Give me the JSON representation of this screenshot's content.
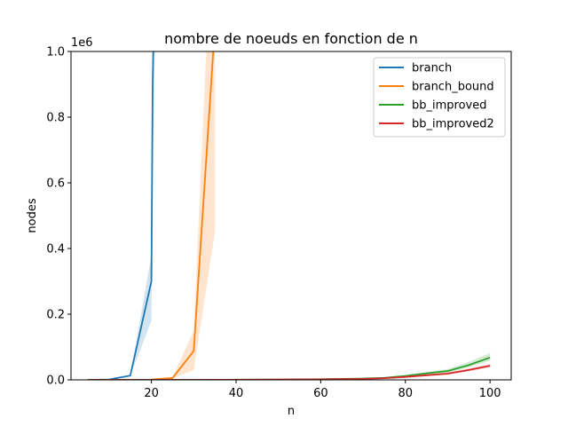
{
  "chart_data": {
    "type": "line",
    "title": "nombre de noeuds en fonction de n",
    "xlabel": "n",
    "ylabel": "nodes",
    "offset_text": "1e6",
    "xlim": [
      1,
      105
    ],
    "ylim": [
      0,
      1.0
    ],
    "x_ticks": [
      20,
      40,
      60,
      80,
      100
    ],
    "y_ticks": [
      0.0,
      0.2,
      0.4,
      0.6,
      0.8,
      1.0
    ],
    "x_tick_labels": [
      "20",
      "40",
      "60",
      "80",
      "100"
    ],
    "y_tick_labels": [
      "0.0",
      "0.2",
      "0.4",
      "0.6",
      "0.8",
      "1.0"
    ],
    "legend_position": "upper-right",
    "grid": false,
    "series": [
      {
        "name": "branch",
        "color": "#1f77b4",
        "x": [
          5,
          10,
          15,
          20,
          20.3,
          21
        ],
        "y": [
          0,
          0.001,
          0.013,
          0.3,
          0.9,
          1.4
        ],
        "lower": [
          0,
          0.001,
          0.012,
          0.18,
          0.6,
          1.2
        ],
        "upper": [
          0,
          0.001,
          0.014,
          0.38,
          1.1,
          1.6
        ]
      },
      {
        "name": "branch_bound",
        "color": "#ff7f0e",
        "x": [
          20,
          25,
          30,
          35
        ],
        "y": [
          0.001,
          0.006,
          0.088,
          1.08
        ],
        "lower": [
          0.001,
          0.004,
          0.03,
          0.45
        ],
        "upper": [
          0.001,
          0.008,
          0.15,
          1.6
        ]
      },
      {
        "name": "bb_improved",
        "color": "#2ca02c",
        "x": [
          5,
          10,
          20,
          30,
          40,
          50,
          60,
          70,
          75,
          80,
          85,
          90,
          95,
          100
        ],
        "y": [
          0,
          0,
          0,
          0,
          0.0005,
          0.001,
          0.002,
          0.004,
          0.006,
          0.012,
          0.02,
          0.027,
          0.045,
          0.068
        ],
        "lower": [
          0,
          0,
          0,
          0,
          0.0004,
          0.0008,
          0.0017,
          0.0035,
          0.005,
          0.01,
          0.016,
          0.022,
          0.038,
          0.058
        ],
        "upper": [
          0,
          0,
          0,
          0,
          0.0006,
          0.0012,
          0.0025,
          0.005,
          0.008,
          0.015,
          0.024,
          0.033,
          0.055,
          0.082
        ]
      },
      {
        "name": "bb_improved2",
        "color": "#d62728",
        "x": [
          5,
          10,
          20,
          30,
          40,
          50,
          60,
          70,
          75,
          80,
          85,
          90,
          95,
          100
        ],
        "y": [
          0,
          0,
          0,
          0,
          0.0004,
          0.0008,
          0.0016,
          0.003,
          0.005,
          0.009,
          0.014,
          0.019,
          0.03,
          0.043
        ],
        "lower": [
          0,
          0,
          0,
          0,
          0.0003,
          0.0006,
          0.0013,
          0.0025,
          0.004,
          0.007,
          0.011,
          0.016,
          0.026,
          0.038
        ],
        "upper": [
          0,
          0,
          0,
          0,
          0.0005,
          0.001,
          0.002,
          0.0035,
          0.006,
          0.011,
          0.017,
          0.023,
          0.035,
          0.049
        ]
      }
    ]
  }
}
